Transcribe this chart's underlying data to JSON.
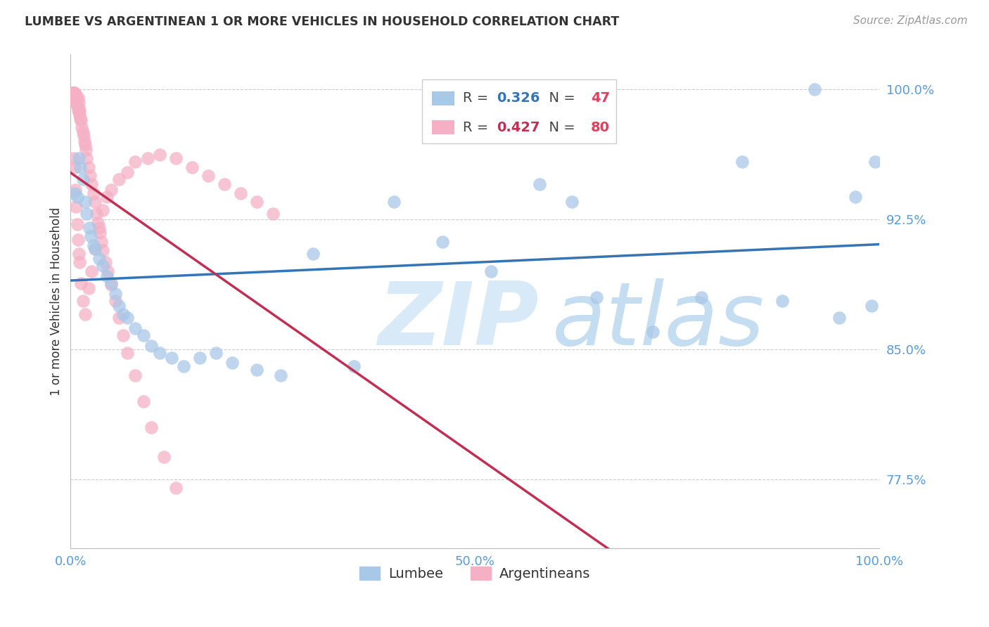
{
  "title": "LUMBEE VS ARGENTINEAN 1 OR MORE VEHICLES IN HOUSEHOLD CORRELATION CHART",
  "source": "Source: ZipAtlas.com",
  "ylabel": "1 or more Vehicles in Household",
  "lumbee_R": "0.326",
  "lumbee_N": "47",
  "arg_R": "0.427",
  "arg_N": "80",
  "lumbee_color": "#a8c8e8",
  "arg_color": "#f5b0c5",
  "lumbee_line_color": "#3575b5",
  "arg_line_color": "#c03055",
  "title_color": "#333333",
  "source_color": "#999999",
  "tick_color": "#5b9bd5",
  "grid_color": "#cccccc",
  "N_color": "#e04060",
  "watermark_zip_color": "#d8eaf8",
  "watermark_atlas_color": "#c5ddf0",
  "xlim": [
    0.0,
    100.0
  ],
  "ylim": [
    73.5,
    102.0
  ],
  "yticks": [
    77.5,
    85.0,
    92.5,
    100.0
  ],
  "ytick_labels": [
    "77.5%",
    "85.0%",
    "92.5%",
    "100.0%"
  ],
  "xticks": [
    0.0,
    10.0,
    20.0,
    30.0,
    40.0,
    50.0,
    60.0,
    70.0,
    80.0,
    90.0,
    100.0
  ],
  "xtick_labels": [
    "0.0%",
    "",
    "",
    "",
    "",
    "50.0%",
    "",
    "",
    "",
    "",
    "100.0%"
  ],
  "lumbee_x": [
    0.5,
    0.8,
    1.0,
    1.2,
    1.5,
    1.8,
    2.0,
    2.3,
    2.5,
    2.8,
    3.0,
    3.5,
    4.0,
    4.5,
    5.0,
    5.5,
    6.0,
    6.5,
    7.0,
    8.0,
    9.0,
    10.0,
    11.0,
    12.5,
    14.0,
    16.0,
    18.0,
    20.0,
    23.0,
    26.0,
    30.0,
    35.0,
    40.0,
    46.0,
    52.0,
    58.0,
    62.0,
    65.0,
    72.0,
    78.0,
    83.0,
    88.0,
    92.0,
    95.0,
    97.0,
    99.0,
    99.5
  ],
  "lumbee_y": [
    94.0,
    93.8,
    96.0,
    95.5,
    94.8,
    93.5,
    92.8,
    92.0,
    91.5,
    91.0,
    90.8,
    90.2,
    89.8,
    89.2,
    88.8,
    88.2,
    87.5,
    87.0,
    86.8,
    86.2,
    85.8,
    85.2,
    84.8,
    84.5,
    84.0,
    84.5,
    84.8,
    84.2,
    83.8,
    83.5,
    90.5,
    84.0,
    93.5,
    91.2,
    89.5,
    94.5,
    93.5,
    88.0,
    86.0,
    88.0,
    95.8,
    87.8,
    100.0,
    86.8,
    93.8,
    87.5,
    95.8
  ],
  "arg_x": [
    0.2,
    0.3,
    0.3,
    0.4,
    0.4,
    0.5,
    0.5,
    0.6,
    0.6,
    0.7,
    0.7,
    0.8,
    0.8,
    0.9,
    0.9,
    1.0,
    1.0,
    1.1,
    1.1,
    1.2,
    1.3,
    1.4,
    1.5,
    1.6,
    1.7,
    1.8,
    1.9,
    2.0,
    2.2,
    2.4,
    2.6,
    2.8,
    3.0,
    3.2,
    3.4,
    3.6,
    3.8,
    4.0,
    4.3,
    4.6,
    5.0,
    5.5,
    6.0,
    6.5,
    7.0,
    8.0,
    9.0,
    10.0,
    11.5,
    13.0,
    0.4,
    0.5,
    0.6,
    0.7,
    0.8,
    0.9,
    1.0,
    1.1,
    1.3,
    1.5,
    1.8,
    2.2,
    2.6,
    3.0,
    3.5,
    4.0,
    4.5,
    5.0,
    6.0,
    7.0,
    8.0,
    9.5,
    11.0,
    13.0,
    15.0,
    17.0,
    19.0,
    21.0,
    23.0,
    25.0
  ],
  "arg_y": [
    99.8,
    99.8,
    99.7,
    99.8,
    99.6,
    99.8,
    99.5,
    99.7,
    99.3,
    99.6,
    99.2,
    99.4,
    99.0,
    99.5,
    98.8,
    99.2,
    98.7,
    98.8,
    98.5,
    98.3,
    98.2,
    97.8,
    97.5,
    97.3,
    97.0,
    96.8,
    96.5,
    96.0,
    95.5,
    95.0,
    94.5,
    94.0,
    93.5,
    92.8,
    92.3,
    91.7,
    91.2,
    90.7,
    90.0,
    89.5,
    88.7,
    87.8,
    86.8,
    85.8,
    84.8,
    83.5,
    82.0,
    80.5,
    78.8,
    77.0,
    96.0,
    95.5,
    94.2,
    93.2,
    92.2,
    91.3,
    90.5,
    90.0,
    88.8,
    87.8,
    87.0,
    88.5,
    89.5,
    90.8,
    92.0,
    93.0,
    93.8,
    94.2,
    94.8,
    95.2,
    95.8,
    96.0,
    96.2,
    96.0,
    95.5,
    95.0,
    94.5,
    94.0,
    93.5,
    92.8
  ]
}
